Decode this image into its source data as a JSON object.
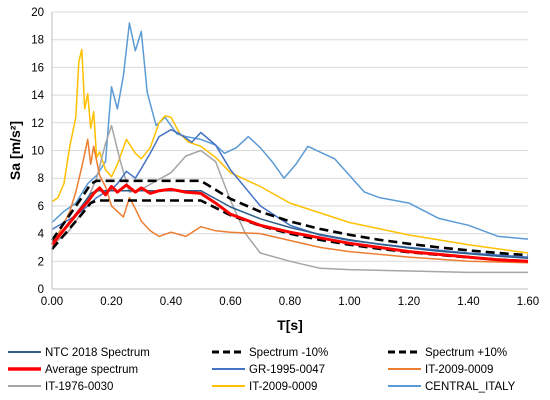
{
  "chart_data": {
    "type": "line",
    "title": "",
    "xlabel": "T[s]",
    "ylabel": "Sa [m/s²]",
    "xlim": [
      0,
      1.6
    ],
    "ylim": [
      0,
      20
    ],
    "x_ticks": [
      0,
      0.2,
      0.4,
      0.6,
      0.8,
      1.0,
      1.2,
      1.4,
      1.6
    ],
    "x_tick_labels": [
      "0.00",
      "0.20",
      "0.40",
      "0.60",
      "0.80",
      "1.00",
      "1.20",
      "1.40",
      "1.60"
    ],
    "y_ticks": [
      0,
      2,
      4,
      6,
      8,
      10,
      12,
      14,
      16,
      18,
      20
    ],
    "y_tick_labels": [
      "0",
      "2",
      "4",
      "6",
      "8",
      "10",
      "12",
      "14",
      "16",
      "18",
      "20"
    ],
    "grid": true,
    "legend_position": "bottom",
    "series": [
      {
        "name": "NTC 2018 Spectrum",
        "color": "#2e5f8a",
        "width": 1.5,
        "dash": "",
        "x": [
          0,
          0.05,
          0.1,
          0.13,
          0.15,
          0.5,
          0.6,
          0.7,
          0.8,
          0.9,
          1.0,
          1.1,
          1.2,
          1.3,
          1.4,
          1.5,
          1.6
        ],
        "y": [
          3.2,
          4.6,
          6.0,
          6.9,
          7.1,
          7.1,
          5.92,
          5.07,
          4.44,
          3.94,
          3.55,
          3.23,
          2.96,
          2.73,
          2.54,
          2.37,
          2.22
        ]
      },
      {
        "name": "Spectrum -10%",
        "color": "#000000",
        "width": 2.6,
        "dash": "9,5",
        "x": [
          0,
          0.05,
          0.1,
          0.13,
          0.15,
          0.5,
          0.6,
          0.7,
          0.8,
          0.9,
          1.0,
          1.1,
          1.2,
          1.3,
          1.4,
          1.5,
          1.6
        ],
        "y": [
          2.88,
          4.14,
          5.4,
          6.21,
          6.39,
          6.39,
          5.33,
          4.56,
          3.99,
          3.55,
          3.2,
          2.9,
          2.66,
          2.46,
          2.28,
          2.13,
          2.0
        ]
      },
      {
        "name": "Spectrum +10%",
        "color": "#000000",
        "width": 2.6,
        "dash": "9,5",
        "x": [
          0,
          0.05,
          0.1,
          0.13,
          0.15,
          0.5,
          0.6,
          0.7,
          0.8,
          0.9,
          1.0,
          1.1,
          1.2,
          1.3,
          1.4,
          1.5,
          1.6
        ],
        "y": [
          3.52,
          5.06,
          6.6,
          7.59,
          7.81,
          7.81,
          6.51,
          5.58,
          4.88,
          4.34,
          3.91,
          3.55,
          3.26,
          3.0,
          2.79,
          2.6,
          2.44
        ]
      },
      {
        "name": "Average spectrum",
        "color": "#ff0000",
        "width": 3,
        "dash": "",
        "x": [
          0,
          0.03,
          0.06,
          0.09,
          0.12,
          0.14,
          0.16,
          0.18,
          0.2,
          0.22,
          0.25,
          0.28,
          0.3,
          0.33,
          0.36,
          0.4,
          0.45,
          0.5,
          0.55,
          0.6,
          0.7,
          0.8,
          0.9,
          1.0,
          1.1,
          1.2,
          1.3,
          1.4,
          1.5,
          1.6
        ],
        "y": [
          3.2,
          4.0,
          4.8,
          5.6,
          6.3,
          6.9,
          7.3,
          6.8,
          7.4,
          7.0,
          7.5,
          7.0,
          7.3,
          6.9,
          7.1,
          7.2,
          7.0,
          6.9,
          6.2,
          5.4,
          4.6,
          4.1,
          3.7,
          3.3,
          3.0,
          2.7,
          2.5,
          2.3,
          2.1,
          2.0
        ]
      },
      {
        "name": "GR-1995-0047",
        "color": "#4472c4",
        "width": 1.5,
        "dash": "",
        "x": [
          0,
          0.04,
          0.08,
          0.12,
          0.15,
          0.18,
          0.2,
          0.22,
          0.25,
          0.28,
          0.3,
          0.33,
          0.36,
          0.4,
          0.43,
          0.47,
          0.5,
          0.55,
          0.6,
          0.7,
          0.8,
          0.9,
          1.0,
          1.2,
          1.4,
          1.6
        ],
        "y": [
          4.3,
          4.8,
          5.3,
          6.0,
          6.6,
          7.0,
          7.2,
          7.6,
          8.5,
          8.0,
          8.7,
          9.8,
          11.0,
          11.5,
          11.2,
          10.6,
          11.3,
          10.4,
          8.6,
          6.0,
          4.6,
          3.9,
          3.5,
          3.0,
          2.6,
          2.3
        ]
      },
      {
        "name": "IT-2009-0009",
        "color": "#ed7d31",
        "width": 1.5,
        "dash": "",
        "x": [
          0,
          0.03,
          0.06,
          0.08,
          0.1,
          0.12,
          0.13,
          0.14,
          0.16,
          0.18,
          0.2,
          0.22,
          0.24,
          0.26,
          0.28,
          0.3,
          0.33,
          0.36,
          0.4,
          0.45,
          0.5,
          0.55,
          0.6,
          0.7,
          0.8,
          0.9,
          1.0,
          1.2,
          1.4,
          1.6
        ],
        "y": [
          3.3,
          4.3,
          5.6,
          7.0,
          8.8,
          10.8,
          9.0,
          10.3,
          8.2,
          7.4,
          6.0,
          5.6,
          5.2,
          6.6,
          5.8,
          4.9,
          4.2,
          3.8,
          4.1,
          3.8,
          4.5,
          4.2,
          4.1,
          4.0,
          3.5,
          3.0,
          2.7,
          2.3,
          2.0,
          1.9
        ]
      },
      {
        "name": "IT-1976-0030",
        "color": "#a5a5a5",
        "width": 1.5,
        "dash": "",
        "x": [
          0,
          0.05,
          0.1,
          0.15,
          0.18,
          0.2,
          0.23,
          0.26,
          0.3,
          0.35,
          0.4,
          0.45,
          0.5,
          0.55,
          0.6,
          0.65,
          0.7,
          0.8,
          0.9,
          1.0,
          1.2,
          1.4,
          1.6
        ],
        "y": [
          3.2,
          4.0,
          5.5,
          8.0,
          10.5,
          11.8,
          9.2,
          7.0,
          7.2,
          7.8,
          8.4,
          9.6,
          10.0,
          9.2,
          6.4,
          4.0,
          2.6,
          2.0,
          1.5,
          1.4,
          1.3,
          1.2,
          1.2
        ]
      },
      {
        "name": "IT-2009-0009",
        "color": "#ffc000",
        "width": 1.5,
        "dash": "",
        "x": [
          0,
          0.02,
          0.04,
          0.06,
          0.08,
          0.09,
          0.1,
          0.11,
          0.12,
          0.13,
          0.14,
          0.15,
          0.16,
          0.18,
          0.2,
          0.22,
          0.25,
          0.28,
          0.3,
          0.33,
          0.36,
          0.38,
          0.4,
          0.43,
          0.46,
          0.5,
          0.55,
          0.6,
          0.7,
          0.8,
          1.0,
          1.2,
          1.4,
          1.6
        ],
        "y": [
          6.3,
          6.6,
          7.6,
          10.3,
          12.4,
          16.4,
          17.3,
          13.0,
          14.1,
          11.6,
          12.8,
          9.5,
          9.9,
          8.6,
          8.1,
          9.0,
          10.8,
          9.8,
          9.4,
          10.2,
          12.0,
          12.5,
          12.4,
          11.2,
          10.6,
          10.3,
          9.5,
          8.4,
          7.4,
          6.2,
          4.8,
          3.9,
          3.2,
          2.6
        ]
      },
      {
        "name": "CENTRAL_ITALY",
        "color": "#5b9bd5",
        "width": 1.5,
        "dash": "",
        "x": [
          0,
          0.04,
          0.08,
          0.12,
          0.15,
          0.18,
          0.2,
          0.22,
          0.24,
          0.26,
          0.28,
          0.3,
          0.32,
          0.35,
          0.38,
          0.42,
          0.45,
          0.5,
          0.55,
          0.58,
          0.62,
          0.66,
          0.7,
          0.74,
          0.78,
          0.82,
          0.86,
          0.9,
          0.95,
          1.0,
          1.05,
          1.1,
          1.2,
          1.3,
          1.4,
          1.5,
          1.6
        ],
        "y": [
          4.8,
          5.6,
          6.2,
          7.6,
          8.2,
          9.2,
          14.6,
          13.0,
          15.4,
          19.2,
          17.2,
          18.6,
          14.2,
          11.8,
          12.4,
          11.2,
          11.0,
          10.8,
          10.4,
          9.8,
          10.2,
          11.0,
          10.2,
          9.2,
          8.0,
          9.0,
          10.3,
          9.9,
          9.4,
          8.2,
          7.0,
          6.6,
          6.2,
          5.1,
          4.6,
          3.8,
          3.6
        ]
      }
    ]
  }
}
